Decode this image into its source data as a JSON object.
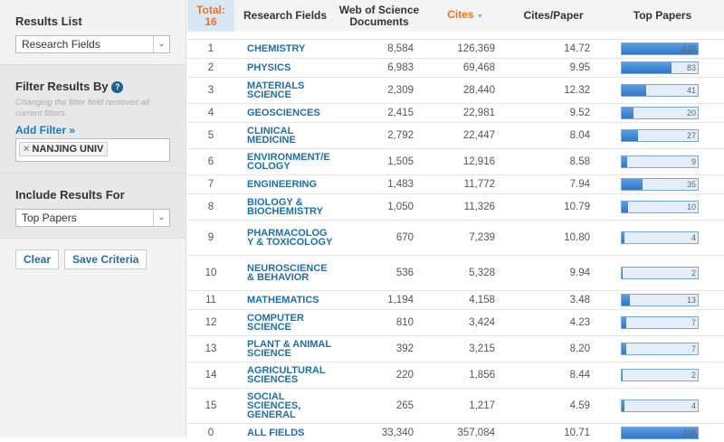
{
  "sidebar": {
    "results_list": {
      "title": "Results List",
      "value": "Research Fields"
    },
    "filter": {
      "title": "Filter Results By",
      "help_icon": "question-circle-icon",
      "note": "Changing the filter field removes all current filters.",
      "add_filter": "Add Filter »",
      "chip": "NANJING UNIV",
      "chip_remove": "×"
    },
    "include": {
      "title": "Include Results For",
      "value": "Top Papers"
    },
    "clear": "Clear",
    "save": "Save Criteria"
  },
  "table": {
    "headers": {
      "total": "Total:",
      "total_count": "16",
      "field": "Research Fields",
      "docs": "Web of Science Documents",
      "cites": "Cites",
      "cites_sort": "▼",
      "cpp": "Cites/Paper",
      "top": "Top Papers"
    },
    "bar_max": 127,
    "rows": [
      {
        "n": "1",
        "field": "CHEMISTRY",
        "docs": "8,584",
        "cites": "126,369",
        "cpp": "14.72",
        "top": 127
      },
      {
        "n": "2",
        "field": "PHYSICS",
        "docs": "6,983",
        "cites": "69,468",
        "cpp": "9.95",
        "top": 83
      },
      {
        "n": "3",
        "field": "MATERIALS SCIENCE",
        "docs": "2,309",
        "cites": "28,440",
        "cpp": "12.32",
        "top": 41
      },
      {
        "n": "4",
        "field": "GEOSCIENCES",
        "docs": "2,415",
        "cites": "22,981",
        "cpp": "9.52",
        "top": 20
      },
      {
        "n": "5",
        "field": "CLINICAL MEDICINE",
        "docs": "2,792",
        "cites": "22,447",
        "cpp": "8.04",
        "top": 27
      },
      {
        "n": "6",
        "field": "ENVIRONMENT/E COLOGY",
        "docs": "1,505",
        "cites": "12,916",
        "cpp": "8.58",
        "top": 9
      },
      {
        "n": "7",
        "field": "ENGINEERING",
        "docs": "1,483",
        "cites": "11,772",
        "cpp": "7.94",
        "top": 35
      },
      {
        "n": "8",
        "field": "BIOLOGY & BIOCHEMISTRY",
        "docs": "1,050",
        "cites": "11,326",
        "cpp": "10.79",
        "top": 10
      },
      {
        "n": "9",
        "field": "PHARMACOLOG Y & TOXICOLOGY",
        "docs": "670",
        "cites": "7,239",
        "cpp": "10.80",
        "top": 4
      },
      {
        "n": "10",
        "field": "NEUROSCIENCE & BEHAVIOR",
        "docs": "536",
        "cites": "5,328",
        "cpp": "9.94",
        "top": 2
      },
      {
        "n": "11",
        "field": "MATHEMATICS",
        "docs": "1,194",
        "cites": "4,158",
        "cpp": "3.48",
        "top": 13
      },
      {
        "n": "12",
        "field": "COMPUTER SCIENCE",
        "docs": "810",
        "cites": "3,424",
        "cpp": "4.23",
        "top": 7
      },
      {
        "n": "13",
        "field": "PLANT & ANIMAL SCIENCE",
        "docs": "392",
        "cites": "3,215",
        "cpp": "8.20",
        "top": 7
      },
      {
        "n": "14",
        "field": "AGRICULTURAL SCIENCES",
        "docs": "220",
        "cites": "1,856",
        "cpp": "8.44",
        "top": 2
      },
      {
        "n": "15",
        "field": "SOCIAL SCIENCES, GENERAL",
        "docs": "265",
        "cites": "1,217",
        "cpp": "4.59",
        "top": 4
      },
      {
        "n": "0",
        "field": "ALL FIELDS",
        "docs": "33,340",
        "cites": "357,084",
        "cpp": "10.71",
        "top": 408
      }
    ]
  }
}
